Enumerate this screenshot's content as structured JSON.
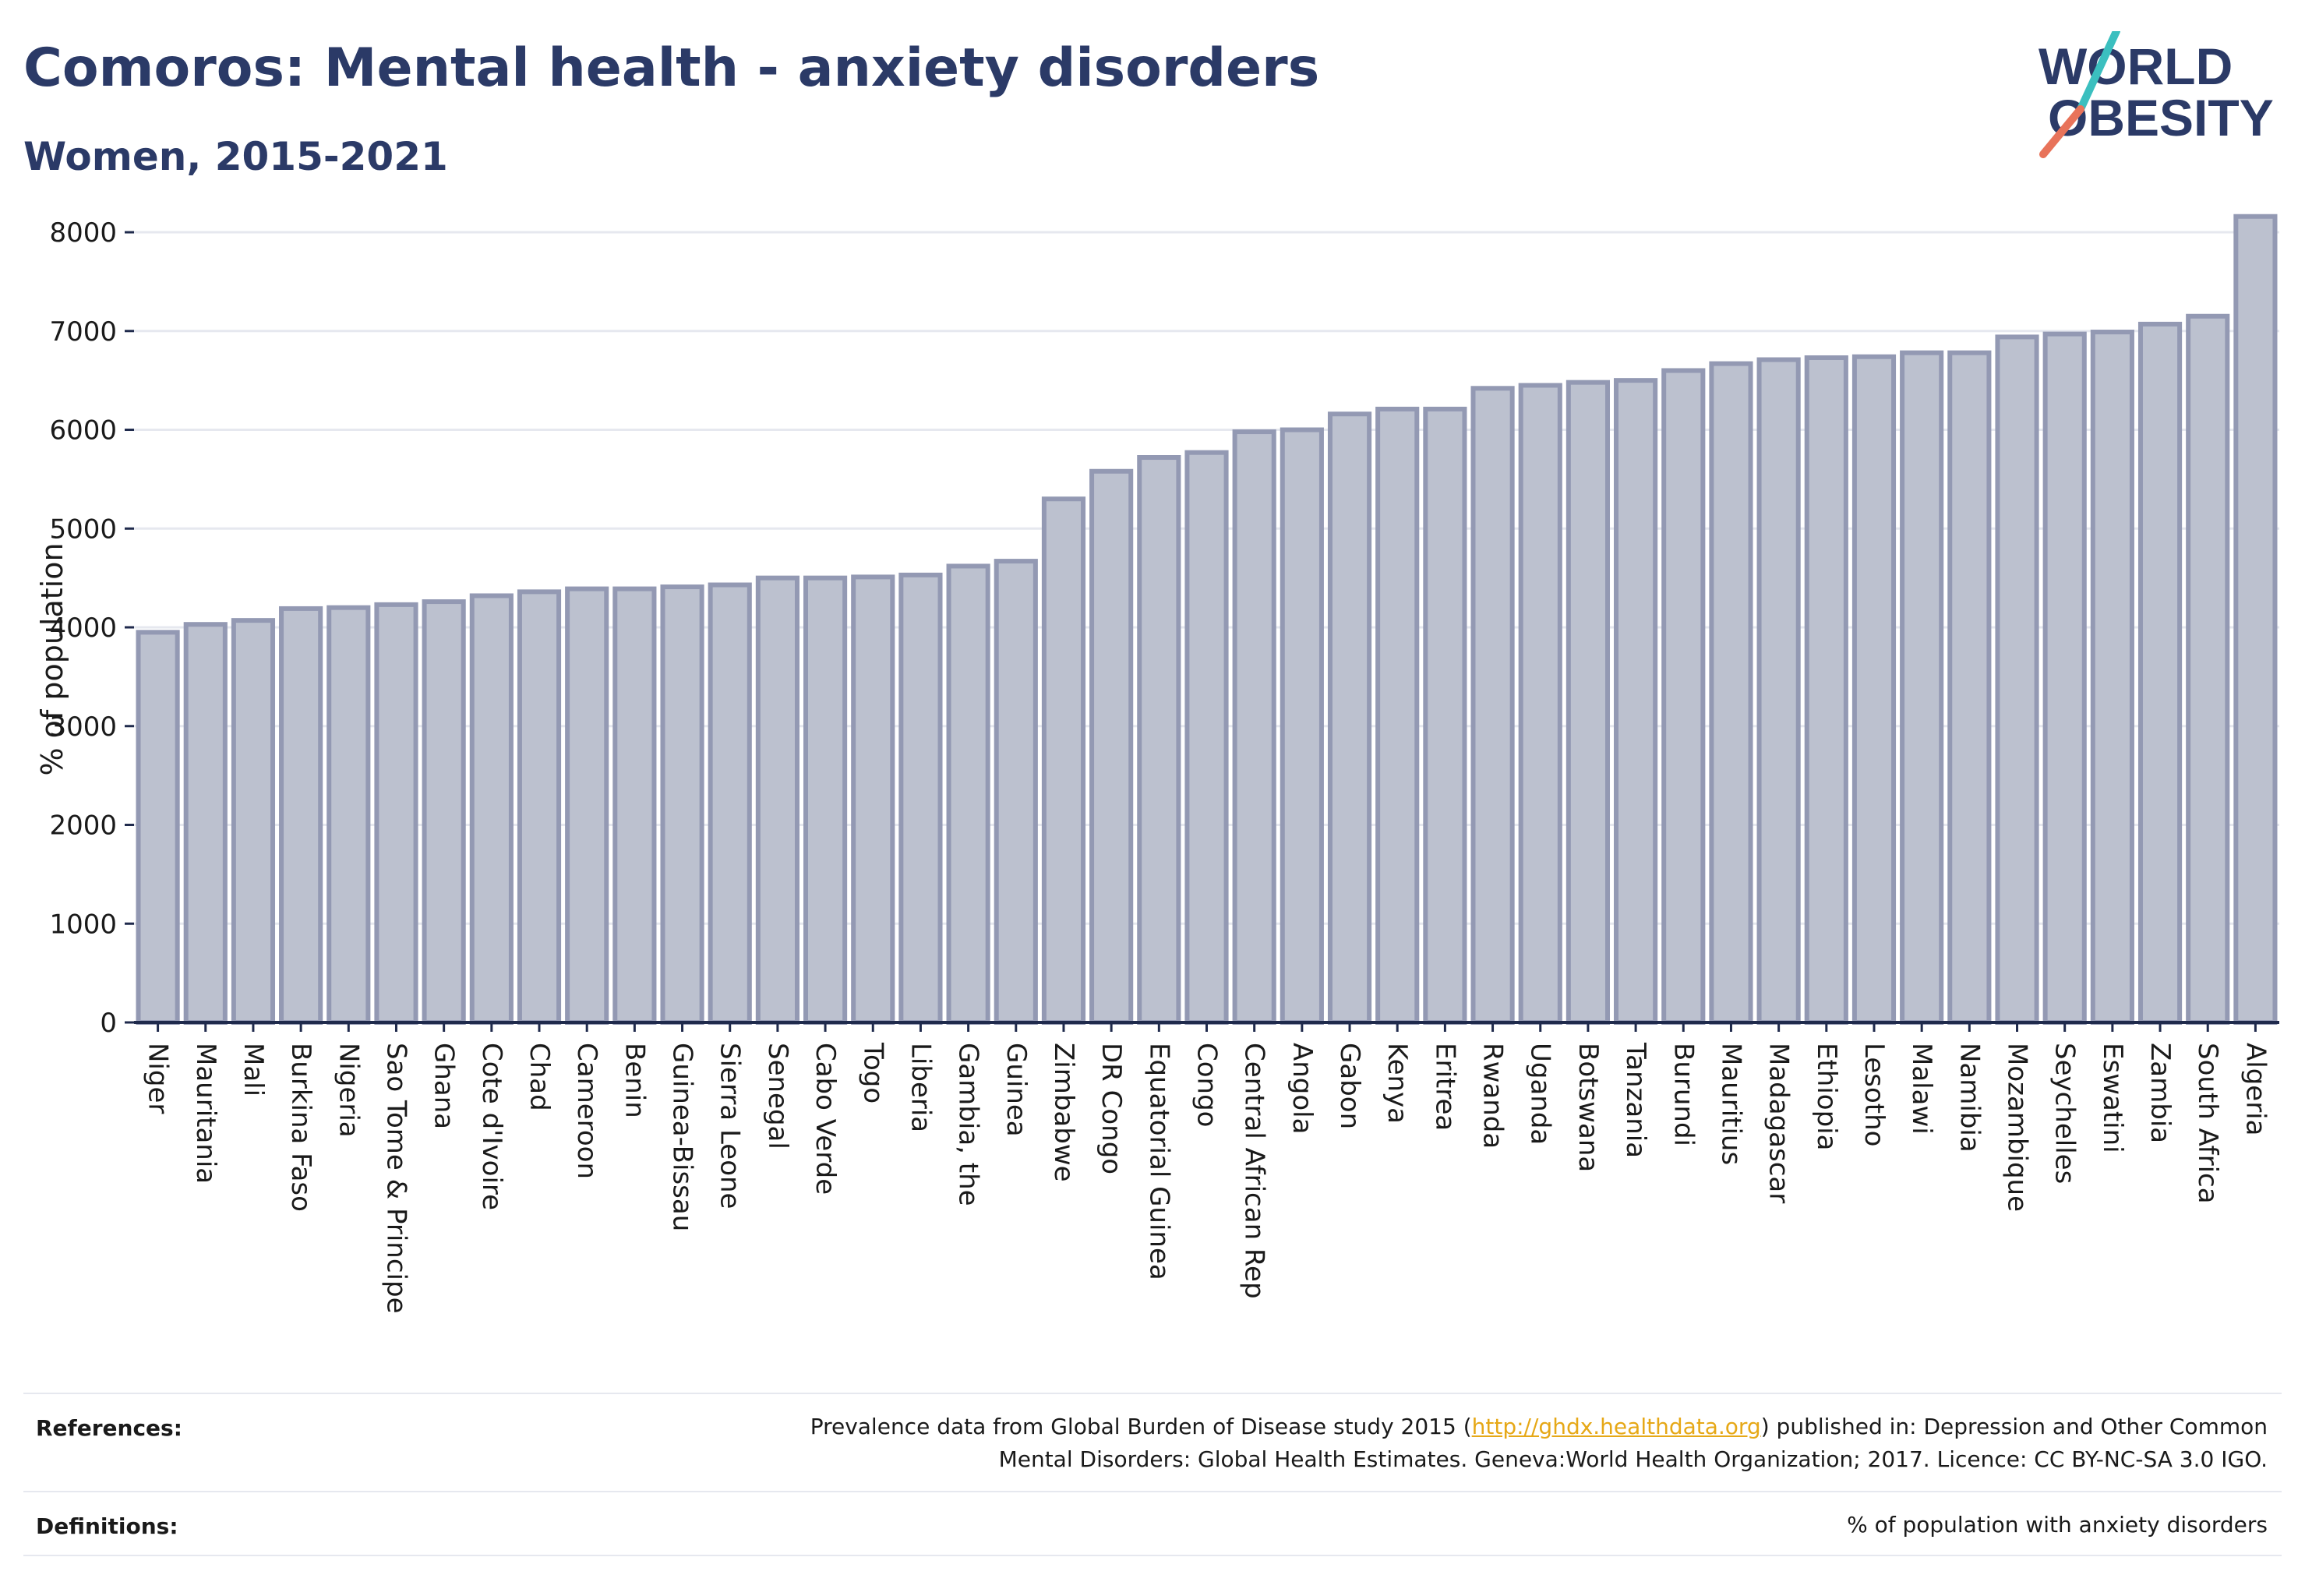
{
  "header": {
    "title": "Comoros: Mental health - anxiety disorders",
    "subtitle": "Women, 2015-2021"
  },
  "logo": {
    "line1": "WORLD",
    "line2": "OBESITY",
    "slash_colors": [
      "#3bbfbf",
      "#e8735a"
    ],
    "text_color": "#2b3a67"
  },
  "colors": {
    "bar_fill": "#bcc1cf",
    "bar_stroke": "#9399b3",
    "grid": "#e6e8ef",
    "axis": "#1f2a4c"
  },
  "chart_data": {
    "type": "bar",
    "title": "Comoros: Mental health - anxiety disorders",
    "subtitle": "Women, 2015-2021",
    "xlabel": "",
    "ylabel": "% of population",
    "ylim": [
      0,
      8300
    ],
    "yticks": [
      0,
      1000,
      2000,
      3000,
      4000,
      5000,
      6000,
      7000,
      8000
    ],
    "grid": true,
    "categories": [
      "Niger",
      "Mauritania",
      "Mali",
      "Burkina Faso",
      "Nigeria",
      "Sao Tome & Principe",
      "Ghana",
      "Cote d'Ivoire",
      "Chad",
      "Cameroon",
      "Benin",
      "Guinea-Bissau",
      "Sierra Leone",
      "Senegal",
      "Cabo Verde",
      "Togo",
      "Liberia",
      "Gambia, the",
      "Guinea",
      "Zimbabwe",
      "DR Congo",
      "Equatorial Guinea",
      "Congo",
      "Central African Rep",
      "Angola",
      "Gabon",
      "Kenya",
      "Eritrea",
      "Rwanda",
      "Uganda",
      "Botswana",
      "Tanzania",
      "Burundi",
      "Mauritius",
      "Madagascar",
      "Ethiopia",
      "Lesotho",
      "Malawi",
      "Namibia",
      "Mozambique",
      "Seychelles",
      "Eswatini",
      "Zambia",
      "South Africa",
      "Algeria"
    ],
    "values": [
      3950,
      4030,
      4070,
      4190,
      4200,
      4230,
      4260,
      4320,
      4360,
      4390,
      4390,
      4410,
      4430,
      4500,
      4500,
      4510,
      4530,
      4620,
      4670,
      5300,
      5580,
      5720,
      5770,
      5980,
      6000,
      6160,
      6210,
      6210,
      6420,
      6450,
      6480,
      6500,
      6600,
      6670,
      6710,
      6730,
      6740,
      6780,
      6780,
      6940,
      6970,
      6990,
      7070,
      7150,
      8160
    ]
  },
  "footer": {
    "references_label": "References:",
    "references_line1_prefix": "Prevalence data from Global Burden of Disease study 2015 (",
    "references_link": "http://ghdx.healthdata.org",
    "references_line1_suffix": ") published in: Depression and Other Common",
    "references_line2": "Mental Disorders: Global Health Estimates. Geneva:World Health Organization; 2017. Licence: CC BY-NC-SA 3.0 IGO.",
    "definitions_label": "Definitions:",
    "definitions_text": "% of population with anxiety disorders"
  }
}
